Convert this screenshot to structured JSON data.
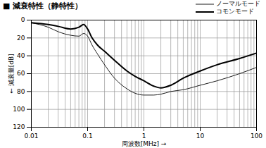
{
  "chart_data": {
    "type": "line",
    "title": "■ 減衰特性（静特性）",
    "x_label": "周波数[MHz]",
    "y_label": "減衰量[dB]",
    "x": [
      0.01,
      0.02,
      0.03,
      0.05,
      0.07,
      0.085,
      0.1,
      0.12,
      0.15,
      0.2,
      0.3,
      0.5,
      0.7,
      1,
      1.5,
      2,
      3,
      5,
      10,
      20,
      50,
      100
    ],
    "series": [
      {
        "name": "ノーマルモード",
        "color": "#000000",
        "values": [
          3,
          8,
          13,
          17,
          18,
          15,
          18,
          28,
          38,
          50,
          65,
          77,
          82,
          84,
          84,
          83,
          80,
          78,
          73,
          68,
          60,
          53
        ]
      },
      {
        "name": "コモンモード",
        "color": "#000000",
        "values": [
          3,
          5,
          7,
          10,
          8,
          5,
          10,
          20,
          28,
          35,
          45,
          57,
          63,
          68,
          74,
          76,
          73,
          65,
          57,
          50,
          43,
          37
        ]
      }
    ],
    "xlim": [
      0.01,
      100
    ],
    "xticks": [
      0.01,
      0.1,
      1,
      10,
      100
    ],
    "ylim": [
      0,
      120
    ],
    "yticks": [
      0,
      20,
      40,
      60,
      80,
      100,
      120
    ],
    "log": "x",
    "grid": true,
    "legend": "top-right"
  }
}
